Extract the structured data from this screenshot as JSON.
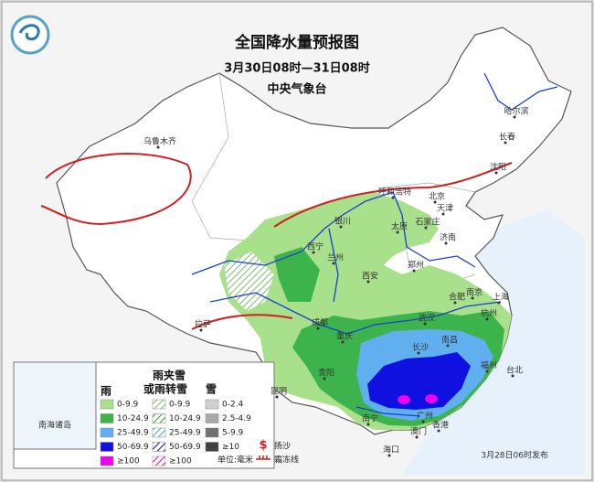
{
  "header": {
    "title": "全国降水量预报图",
    "period": "3月30日08时—31日08时",
    "issuer": "中央气象台"
  },
  "cities": [
    "乌鲁木齐",
    "哈尔滨",
    "长春",
    "沈阳",
    "呼和浩特",
    "北京",
    "天津",
    "银川",
    "太原",
    "石家庄",
    "西宁",
    "兰州",
    "济南",
    "郑州",
    "西安",
    "合肥",
    "南京",
    "上海",
    "成都",
    "武汉",
    "杭州",
    "重庆",
    "拉萨",
    "长沙",
    "南昌",
    "贵阳",
    "福州",
    "昆明",
    "广州",
    "南宁",
    "香港",
    "台北",
    "澳门",
    "海口"
  ],
  "inset": {
    "label": "南海诸岛"
  },
  "legend": {
    "rain": {
      "title": "雨",
      "items": [
        "0-9.9",
        "10-24.9",
        "25-49.9",
        "50-69.9",
        "≥100"
      ]
    },
    "sleet": {
      "title": "雨夹雪",
      "subtitle": "或雨转雪",
      "items": [
        "0-9.9",
        "10-24.9",
        "25-49.9",
        "50-69.9",
        "≥100"
      ]
    },
    "snow": {
      "title": "雪",
      "items": [
        "0-2.4",
        "2.5-4.9",
        "5-9.9",
        "≥10"
      ]
    },
    "symbols": [
      "扬沙",
      "霜冻线"
    ],
    "unit": "单位:毫米"
  },
  "footer": {
    "issued": "3月28日06时发布"
  }
}
